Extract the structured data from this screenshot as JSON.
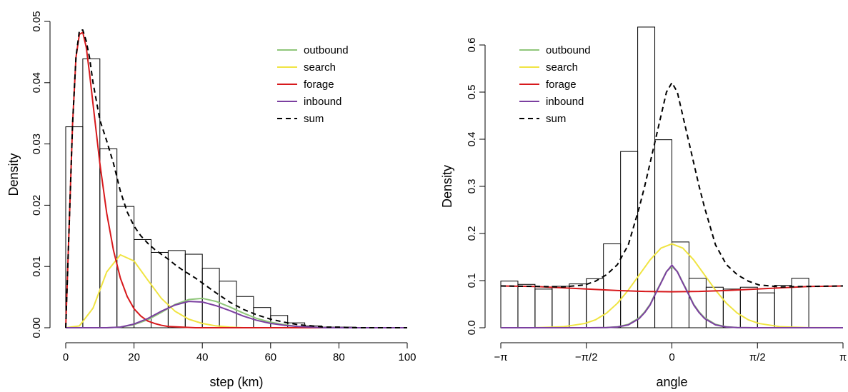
{
  "chart_data": [
    {
      "type": "histogram",
      "xlabel": "step (km)",
      "ylabel": "Density",
      "xlim": [
        0,
        100
      ],
      "ylim": [
        0,
        0.05
      ],
      "xticks": [
        0,
        20,
        40,
        60,
        80,
        100
      ],
      "xtick_labels": [
        "0",
        "20",
        "40",
        "60",
        "80",
        "100"
      ],
      "yticks": [
        0.0,
        0.01,
        0.02,
        0.03,
        0.04,
        0.05
      ],
      "ytick_labels": [
        "0.00",
        "0.01",
        "0.02",
        "0.03",
        "0.04",
        "0.05"
      ],
      "legend": "top-right",
      "histogram": {
        "bin_edges": [
          0,
          5,
          10,
          15,
          20,
          25,
          30,
          35,
          40,
          45,
          50,
          55,
          60,
          65,
          70,
          75,
          80,
          85,
          90,
          95,
          100
        ],
        "densities": [
          0.0328,
          0.0439,
          0.0292,
          0.0198,
          0.0144,
          0.0123,
          0.0126,
          0.012,
          0.0097,
          0.0076,
          0.0051,
          0.0033,
          0.002,
          0.0008,
          0.0003,
          0.0001,
          0.0001,
          0.0,
          0.0,
          0.0
        ]
      },
      "series": [
        {
          "name": "outbound",
          "color": "#8fc67a",
          "x": [
            0,
            4,
            8,
            12,
            16,
            20,
            24,
            28,
            32,
            36,
            40,
            44,
            48,
            52,
            56,
            60,
            64,
            68,
            72,
            76,
            80,
            84,
            88,
            92,
            96,
            100
          ],
          "y": [
            0,
            0,
            0,
            0,
            0.0001,
            0.0005,
            0.0013,
            0.0025,
            0.0038,
            0.0046,
            0.0048,
            0.0043,
            0.0034,
            0.0024,
            0.0015,
            0.0009,
            0.0005,
            0.0002,
            0.0001,
            0,
            0,
            0,
            0,
            0,
            0,
            0
          ]
        },
        {
          "name": "search",
          "color": "#f0e442",
          "x": [
            0,
            4,
            8,
            12,
            16,
            20,
            24,
            28,
            32,
            36,
            40,
            44,
            48,
            52,
            56,
            60,
            64,
            68,
            72,
            76,
            80,
            84,
            88,
            92,
            96,
            100
          ],
          "y": [
            0,
            0.0003,
            0.0032,
            0.0091,
            0.0119,
            0.0109,
            0.0078,
            0.0048,
            0.0027,
            0.0014,
            0.0007,
            0.0003,
            0.0001,
            0,
            0,
            0,
            0,
            0,
            0,
            0,
            0,
            0,
            0,
            0,
            0,
            0
          ]
        },
        {
          "name": "forage",
          "color": "#d7191c",
          "x": [
            0,
            1,
            2,
            3,
            4,
            5,
            6,
            7,
            8,
            10,
            12,
            14,
            16,
            18,
            20,
            22,
            24,
            26,
            28,
            30,
            34,
            38,
            42,
            46,
            50,
            54,
            58,
            62,
            66,
            70,
            74,
            78,
            82,
            86,
            90,
            94,
            98,
            100
          ],
          "y": [
            0,
            0.0165,
            0.0332,
            0.0441,
            0.0479,
            0.0482,
            0.0458,
            0.0414,
            0.0365,
            0.0268,
            0.0187,
            0.0126,
            0.0081,
            0.0051,
            0.0031,
            0.0019,
            0.0011,
            0.0007,
            0.0004,
            0.0002,
            0.0001,
            0,
            0,
            0,
            0,
            0,
            0,
            0,
            0,
            0,
            0,
            0,
            0,
            0,
            0,
            0,
            0,
            0
          ]
        },
        {
          "name": "inbound",
          "color": "#7b3fa0",
          "x": [
            0,
            4,
            8,
            12,
            16,
            20,
            24,
            28,
            32,
            36,
            40,
            44,
            48,
            52,
            56,
            60,
            64,
            68,
            72,
            76,
            80,
            84,
            88,
            92,
            96,
            100
          ],
          "y": [
            0,
            0,
            0,
            0,
            0.0001,
            0.0006,
            0.0015,
            0.0027,
            0.0037,
            0.0043,
            0.0042,
            0.0036,
            0.0028,
            0.0019,
            0.0012,
            0.0007,
            0.0004,
            0.0002,
            0.0001,
            0,
            0,
            0,
            0,
            0,
            0,
            0
          ]
        },
        {
          "name": "sum",
          "color": "#000000",
          "dashed": true,
          "x": [
            0,
            1,
            2,
            3,
            4,
            5,
            6,
            7,
            8,
            10,
            12,
            14,
            16,
            18,
            20,
            22,
            24,
            26,
            28,
            30,
            32,
            34,
            36,
            38,
            40,
            44,
            48,
            52,
            56,
            60,
            64,
            68,
            72,
            76,
            80,
            84,
            88,
            92,
            96,
            100
          ],
          "y": [
            0,
            0.0165,
            0.0332,
            0.0442,
            0.0485,
            0.0486,
            0.0468,
            0.044,
            0.04,
            0.0339,
            0.0305,
            0.0268,
            0.0223,
            0.0189,
            0.0166,
            0.015,
            0.0138,
            0.0128,
            0.012,
            0.0112,
            0.0103,
            0.0095,
            0.0088,
            0.0081,
            0.0073,
            0.0057,
            0.0042,
            0.003,
            0.0021,
            0.0014,
            0.0009,
            0.0005,
            0.0003,
            0.0001,
            0.0001,
            0,
            0,
            0,
            0,
            0
          ]
        }
      ]
    },
    {
      "type": "histogram",
      "xlabel": "angle",
      "ylabel": "Density",
      "xlim": [
        -3.14159,
        3.14159
      ],
      "ylim": [
        0,
        0.65
      ],
      "xticks": [
        -3.14159,
        -1.5708,
        0,
        1.5708,
        3.14159
      ],
      "xtick_labels": [
        "−π",
        "−π/2",
        "0",
        "π/2",
        "π"
      ],
      "yticks": [
        0.0,
        0.1,
        0.2,
        0.3,
        0.4,
        0.5,
        0.6
      ],
      "ytick_labels": [
        "0.0",
        "0.1",
        "0.2",
        "0.3",
        "0.4",
        "0.5",
        "0.6"
      ],
      "legend": "top-left",
      "histogram": {
        "bin_edges": [
          -3.14159,
          -2.82743,
          -2.51327,
          -2.19911,
          -1.88496,
          -1.5708,
          -1.25664,
          -0.94248,
          -0.62832,
          -0.31416,
          0,
          0.31416,
          0.62832,
          0.94248,
          1.25664,
          1.5708,
          1.88496,
          2.19911,
          2.51327,
          2.82743,
          3.14159
        ],
        "densities": [
          0.099,
          0.092,
          0.082,
          0.088,
          0.093,
          0.104,
          0.178,
          0.374,
          0.638,
          0.399,
          0.182,
          0.105,
          0.086,
          0.082,
          0.086,
          0.074,
          0.09,
          0.105,
          0,
          0
        ]
      },
      "series": [
        {
          "name": "outbound",
          "color": "#8fc67a",
          "x": [
            -3.1416,
            -2.5,
            -2.0,
            -1.5,
            -1.2,
            -1.0,
            -0.8,
            -0.6,
            -0.5,
            -0.4,
            -0.3,
            -0.2,
            -0.1,
            0,
            0.1,
            0.2,
            0.3,
            0.4,
            0.5,
            0.6,
            0.8,
            1.0,
            1.2,
            1.5,
            2.0,
            2.5,
            3.1416
          ],
          "y": [
            0,
            0,
            0,
            0,
            0.0004,
            0.002,
            0.0072,
            0.0212,
            0.0336,
            0.0498,
            0.0737,
            0.0963,
            0.1195,
            0.13,
            0.1195,
            0.0963,
            0.0737,
            0.0498,
            0.0336,
            0.0212,
            0.0072,
            0.002,
            0.0004,
            0,
            0,
            0,
            0
          ]
        },
        {
          "name": "search",
          "color": "#f0e442",
          "x": [
            -3.1416,
            -2.5,
            -2.0,
            -1.6,
            -1.4,
            -1.2,
            -1.0,
            -0.8,
            -0.6,
            -0.4,
            -0.2,
            0,
            0.2,
            0.4,
            0.6,
            0.8,
            1.0,
            1.2,
            1.4,
            1.6,
            2.0,
            2.5,
            3.1416
          ],
          "y": [
            0,
            0.0002,
            0.002,
            0.009,
            0.017,
            0.031,
            0.052,
            0.08,
            0.112,
            0.144,
            0.169,
            0.178,
            0.169,
            0.144,
            0.112,
            0.08,
            0.052,
            0.031,
            0.017,
            0.009,
            0.002,
            0.0002,
            0
          ]
        },
        {
          "name": "forage",
          "color": "#d7191c",
          "x": [
            -3.1416,
            -2.5,
            -2.0,
            -1.5,
            -1.0,
            -0.5,
            0,
            0.5,
            1.0,
            1.5,
            2.0,
            2.5,
            3.1416
          ],
          "y": [
            0.0886,
            0.0875,
            0.0846,
            0.0818,
            0.079,
            0.077,
            0.0764,
            0.077,
            0.079,
            0.0818,
            0.0846,
            0.0875,
            0.0886
          ]
        },
        {
          "name": "inbound",
          "color": "#7b3fa0",
          "x": [
            -3.1416,
            -2.5,
            -2.0,
            -1.5,
            -1.2,
            -1.0,
            -0.8,
            -0.6,
            -0.5,
            -0.4,
            -0.3,
            -0.2,
            -0.1,
            0,
            0.1,
            0.2,
            0.3,
            0.4,
            0.5,
            0.6,
            0.8,
            1.0,
            1.2,
            1.5,
            2.0,
            2.5,
            3.1416
          ],
          "y": [
            0,
            0,
            0,
            0,
            0.0003,
            0.0015,
            0.006,
            0.0195,
            0.032,
            0.0483,
            0.0723,
            0.095,
            0.1185,
            0.133,
            0.1185,
            0.095,
            0.0723,
            0.0483,
            0.032,
            0.0195,
            0.006,
            0.0015,
            0.0003,
            0,
            0,
            0,
            0
          ]
        },
        {
          "name": "sum",
          "color": "#000000",
          "dashed": true,
          "x": [
            -3.1416,
            -2.5,
            -2.0,
            -1.6,
            -1.4,
            -1.2,
            -1.0,
            -0.8,
            -0.6,
            -0.5,
            -0.4,
            -0.3,
            -0.2,
            -0.1,
            0,
            0.1,
            0.2,
            0.3,
            0.4,
            0.5,
            0.6,
            0.8,
            1.0,
            1.2,
            1.4,
            1.6,
            2.0,
            2.5,
            3.1416
          ],
          "y": [
            0.0886,
            0.0877,
            0.0866,
            0.0908,
            0.099,
            0.1125,
            0.134,
            0.176,
            0.255,
            0.3,
            0.35,
            0.4,
            0.45,
            0.5,
            0.52,
            0.5,
            0.45,
            0.4,
            0.35,
            0.3,
            0.255,
            0.176,
            0.134,
            0.1125,
            0.099,
            0.0908,
            0.0866,
            0.0877,
            0.0886
          ]
        }
      ]
    }
  ]
}
